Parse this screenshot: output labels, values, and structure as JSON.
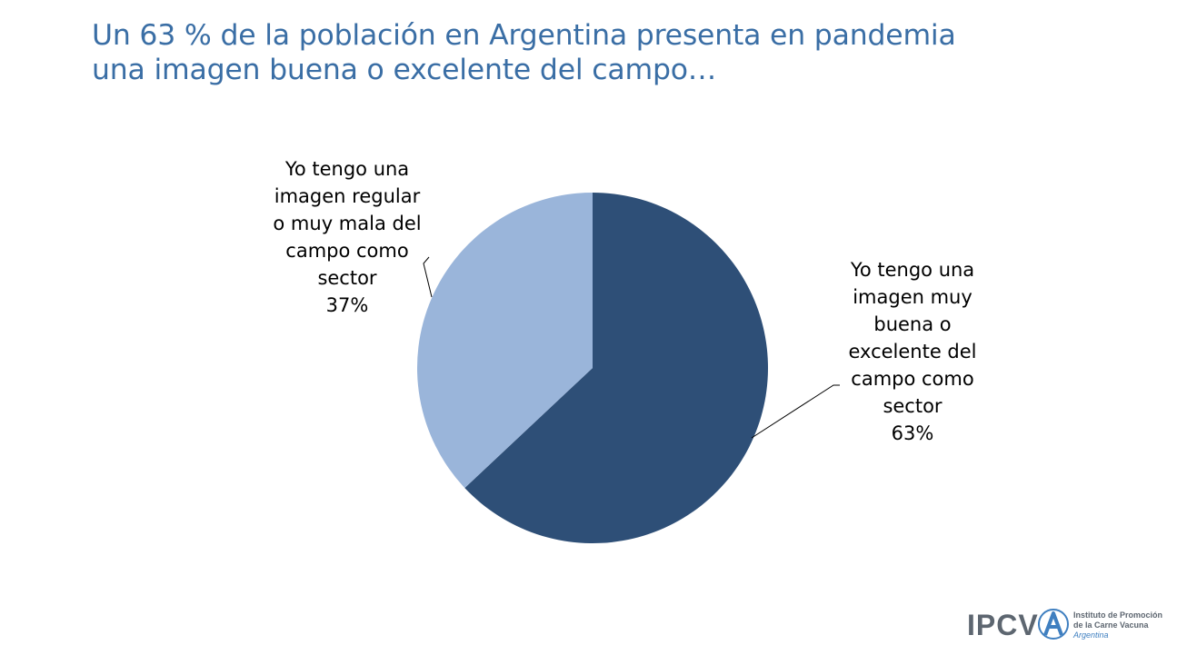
{
  "title": {
    "line1": "Un 63 % de la población en Argentina presenta en pandemia",
    "line2": "una imagen buena o excelente del campo…"
  },
  "chart_data": {
    "type": "pie",
    "slices": [
      {
        "label_lines": [
          "Yo tengo una",
          "imagen muy",
          "buena o",
          "excelente del",
          "campo como",
          "sector"
        ],
        "value": 63,
        "value_label": "63%",
        "color": "#2e4f77"
      },
      {
        "label_lines": [
          "Yo tengo una",
          "imagen regular",
          "o muy mala del",
          "campo como",
          "sector"
        ],
        "value": 37,
        "value_label": "37%",
        "color": "#9ab5da"
      }
    ],
    "start_angle": "top (12 o'clock), clockwise"
  },
  "logo": {
    "acronym": "IPCVA",
    "name_line1": "Instituto de Promoción",
    "name_line2": "de la Carne Vacuna",
    "country": "Argentina"
  }
}
